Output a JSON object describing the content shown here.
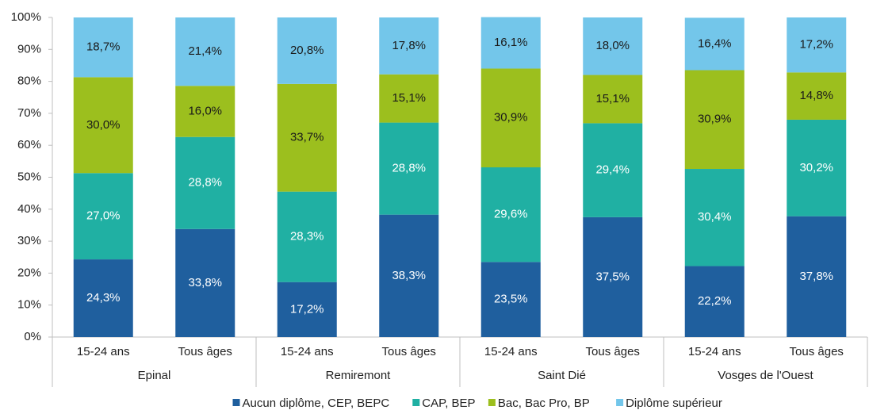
{
  "chart_data": {
    "type": "stacked_bar",
    "categories": [
      "15-24 ans",
      "Tous âges",
      "15-24 ans",
      "Tous âges",
      "15-24 ans",
      "Tous âges",
      "15-24 ans",
      "Tous âges"
    ],
    "groups": [
      "Epinal",
      "Remiremont",
      "Saint Dié",
      "Vosges de l'Ouest"
    ],
    "series": [
      {
        "name": "Aucun diplôme, CEP, BEPC",
        "color": "#1f5f9e",
        "label_color": "#ffffff",
        "values": [
          24.3,
          33.8,
          17.2,
          38.3,
          23.5,
          37.5,
          22.2,
          37.8
        ],
        "value_labels": [
          "24,3%",
          "33,8%",
          "17,2%",
          "38,3%",
          "23,5%",
          "37,5%",
          "22,2%",
          "37,8%"
        ]
      },
      {
        "name": "CAP, BEP",
        "color": "#20b0a3",
        "label_color": "#ffffff",
        "values": [
          27.0,
          28.8,
          28.3,
          28.8,
          29.6,
          29.4,
          30.4,
          30.2
        ],
        "value_labels": [
          "27,0%",
          "28,8%",
          "28,3%",
          "28,8%",
          "29,6%",
          "29,4%",
          "30,4%",
          "30,2%"
        ]
      },
      {
        "name": "Bac, Bac Pro, BP",
        "color": "#9cbf1e",
        "label_color": "#1a1a1a",
        "values": [
          30.0,
          16.0,
          33.7,
          15.1,
          30.9,
          15.1,
          30.9,
          14.8
        ],
        "value_labels": [
          "30,0%",
          "16,0%",
          "33,7%",
          "15,1%",
          "30,9%",
          "15,1%",
          "30,9%",
          "14,8%"
        ]
      },
      {
        "name": "Diplôme supérieur",
        "color": "#73c6ea",
        "label_color": "#1a1a1a",
        "values": [
          18.7,
          21.4,
          20.8,
          17.8,
          16.1,
          18.0,
          16.4,
          17.2
        ],
        "value_labels": [
          "18,7%",
          "21,4%",
          "20,8%",
          "17,8%",
          "16,1%",
          "18,0%",
          "16,4%",
          "17,2%"
        ]
      }
    ],
    "ylim": [
      0,
      100
    ],
    "yticks": [
      {
        "value": 0,
        "label": "0%"
      },
      {
        "value": 10,
        "label": "10%"
      },
      {
        "value": 20,
        "label": "20%"
      },
      {
        "value": 30,
        "label": "30%"
      },
      {
        "value": 40,
        "label": "40%"
      },
      {
        "value": 50,
        "label": "50%"
      },
      {
        "value": 60,
        "label": "60%"
      },
      {
        "value": 70,
        "label": "70%"
      },
      {
        "value": 80,
        "label": "80%"
      },
      {
        "value": 90,
        "label": "90%"
      },
      {
        "value": 100,
        "label": "100%"
      }
    ],
    "legend": "bottom"
  }
}
